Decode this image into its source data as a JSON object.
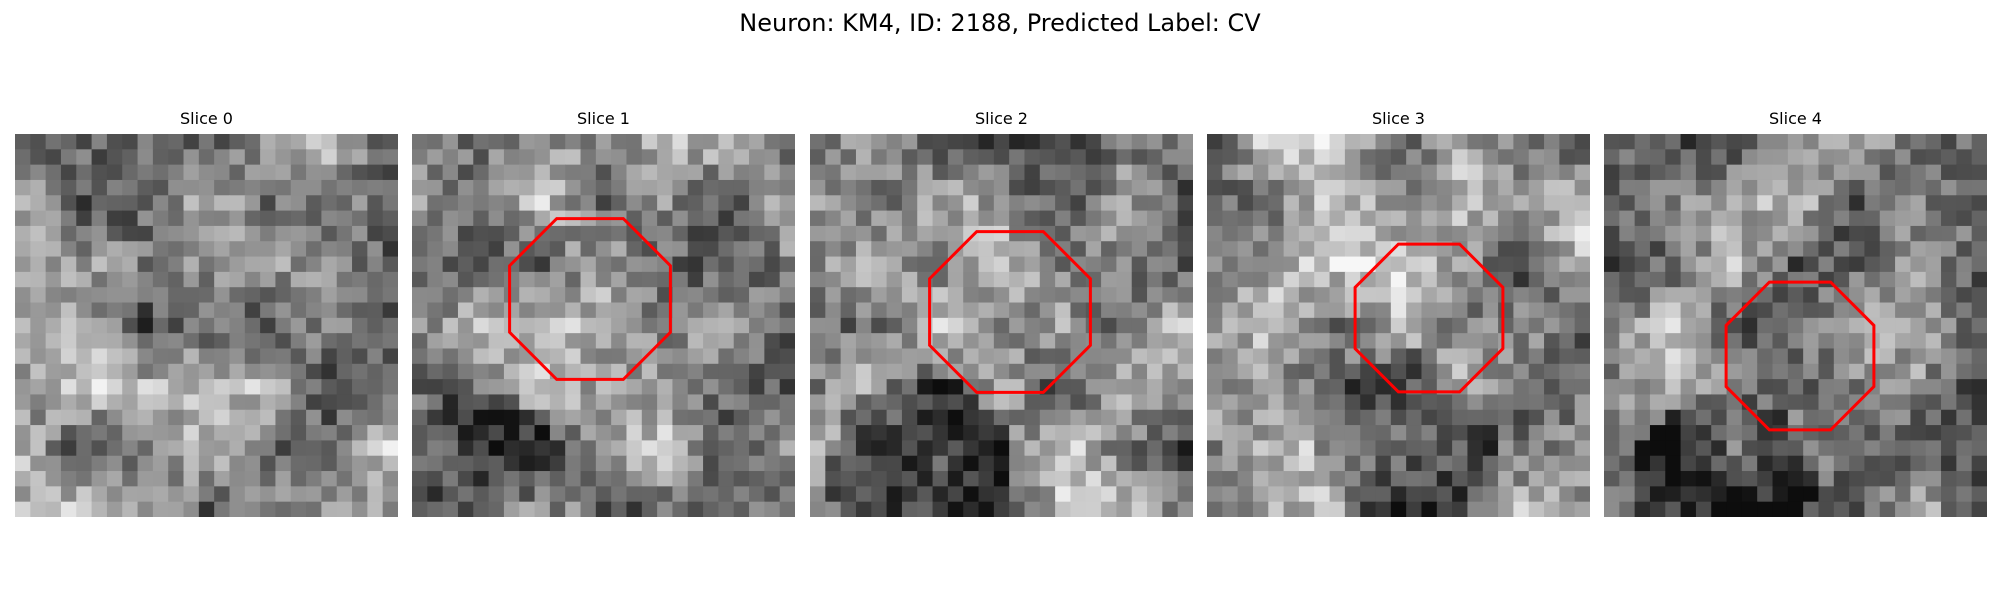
{
  "figure": {
    "title": "Neuron: KM4, ID: 2188, Predicted Label: CV",
    "outline_color": "#ff0000",
    "colormap": "gray",
    "panels": [
      {
        "title": "Slice 0",
        "seed": 11,
        "ring": false
      },
      {
        "title": "Slice 1",
        "seed": 23,
        "ring": true
      },
      {
        "title": "Slice 2",
        "seed": 37,
        "ring": true
      },
      {
        "title": "Slice 3",
        "seed": 41,
        "ring": true
      },
      {
        "title": "Slice 4",
        "seed": 53,
        "ring": true
      }
    ]
  }
}
